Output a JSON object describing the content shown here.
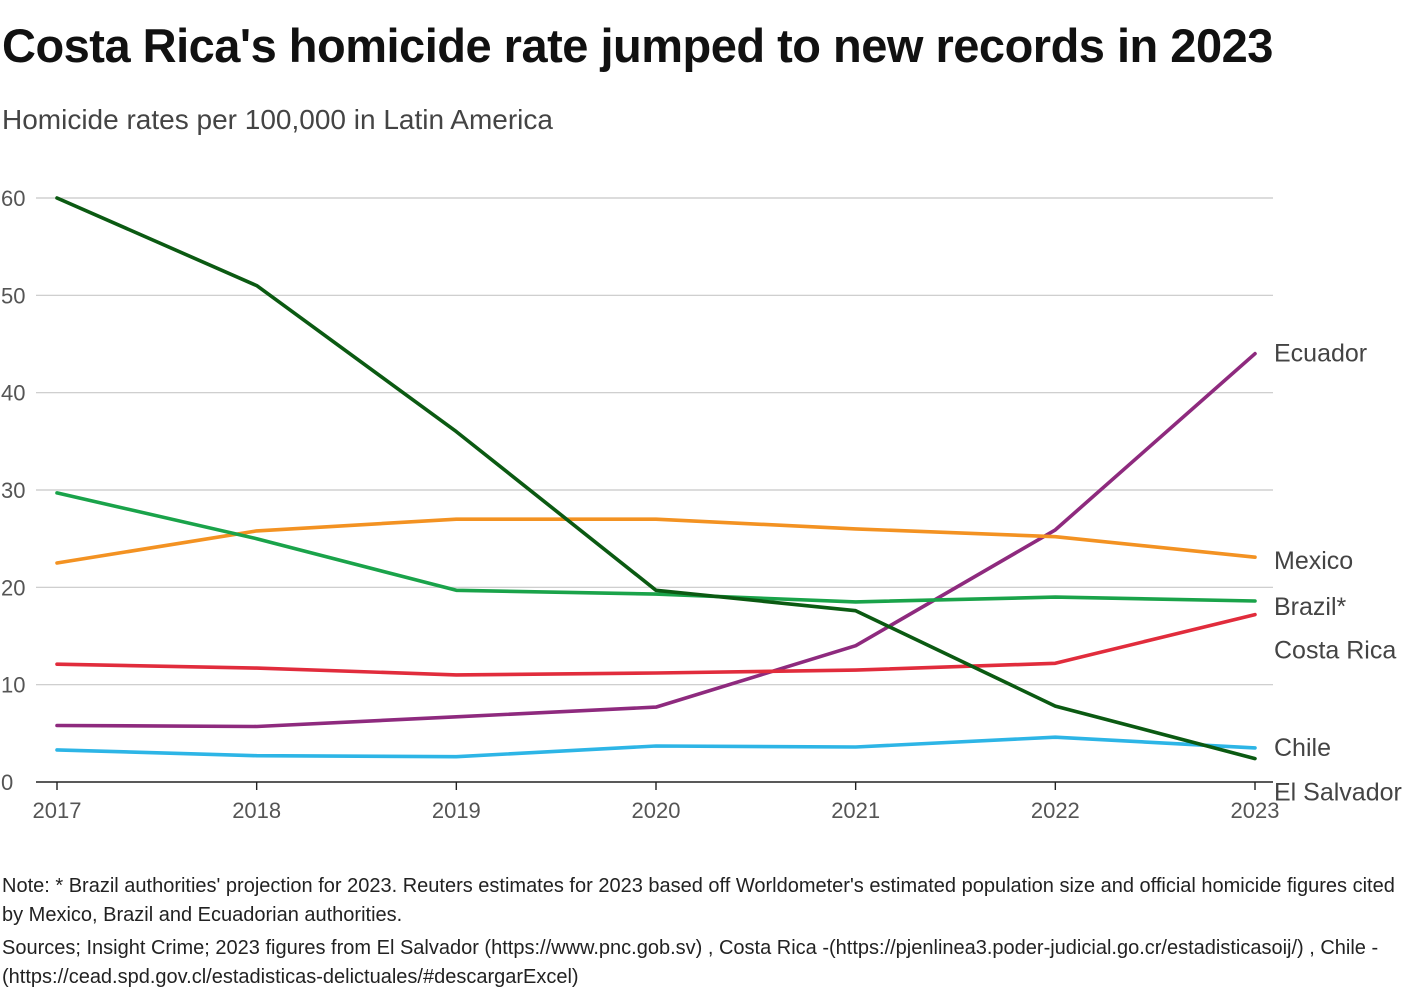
{
  "header": {
    "title": "Costa Rica's homicide rate jumped to new records in 2023",
    "subtitle": "Homicide rates per 100,000 in Latin America"
  },
  "footer": {
    "note": "Note: * Brazil authorities' projection for 2023. Reuters estimates for 2023 based off Worldometer's estimated population size and official homicide figures cited by Mexico, Brazil and Ecuadorian authorities.",
    "sources": "Sources; Insight Crime; 2023 figures from El Salvador (https://www.pnc.gob.sv) , Costa Rica -(https://pjenlinea3.poder-judicial.go.cr/estadisticasoij/) , Chile - (https://cead.spd.gov.cl/estadisticas-delictuales/#descargarExcel)"
  },
  "chart_data": {
    "type": "line",
    "title": "Costa Rica's homicide rate jumped to new records in 2023",
    "subtitle": "Homicide rates per 100,000 in Latin America",
    "xlabel": "",
    "ylabel": "",
    "x": [
      2017,
      2018,
      2019,
      2020,
      2021,
      2022,
      2023
    ],
    "ylim": [
      0,
      60
    ],
    "yticks": [
      0,
      10,
      20,
      30,
      40,
      50,
      60
    ],
    "grid": true,
    "series": [
      {
        "name": "Ecuador",
        "color": "#8e2a7e",
        "values": [
          5.8,
          5.7,
          6.7,
          7.7,
          14.0,
          25.9,
          44.0
        ]
      },
      {
        "name": "Mexico",
        "color": "#f39222",
        "values": [
          22.5,
          25.8,
          27.0,
          27.0,
          26.0,
          25.2,
          23.1
        ]
      },
      {
        "name": "Brazil*",
        "color": "#1aa34a",
        "values": [
          29.7,
          25.0,
          19.7,
          19.3,
          18.5,
          19.0,
          18.6
        ]
      },
      {
        "name": "Costa Rica",
        "color": "#e12c3c",
        "values": [
          12.1,
          11.7,
          11.0,
          11.2,
          11.5,
          12.2,
          17.2
        ]
      },
      {
        "name": "Chile",
        "color": "#2db5e6",
        "values": [
          3.3,
          2.7,
          2.6,
          3.7,
          3.6,
          4.6,
          3.5
        ]
      },
      {
        "name": "El Salvador",
        "color": "#0b5a12",
        "values": [
          60.0,
          51.0,
          36.0,
          19.7,
          17.6,
          7.8,
          2.4
        ]
      }
    ]
  }
}
